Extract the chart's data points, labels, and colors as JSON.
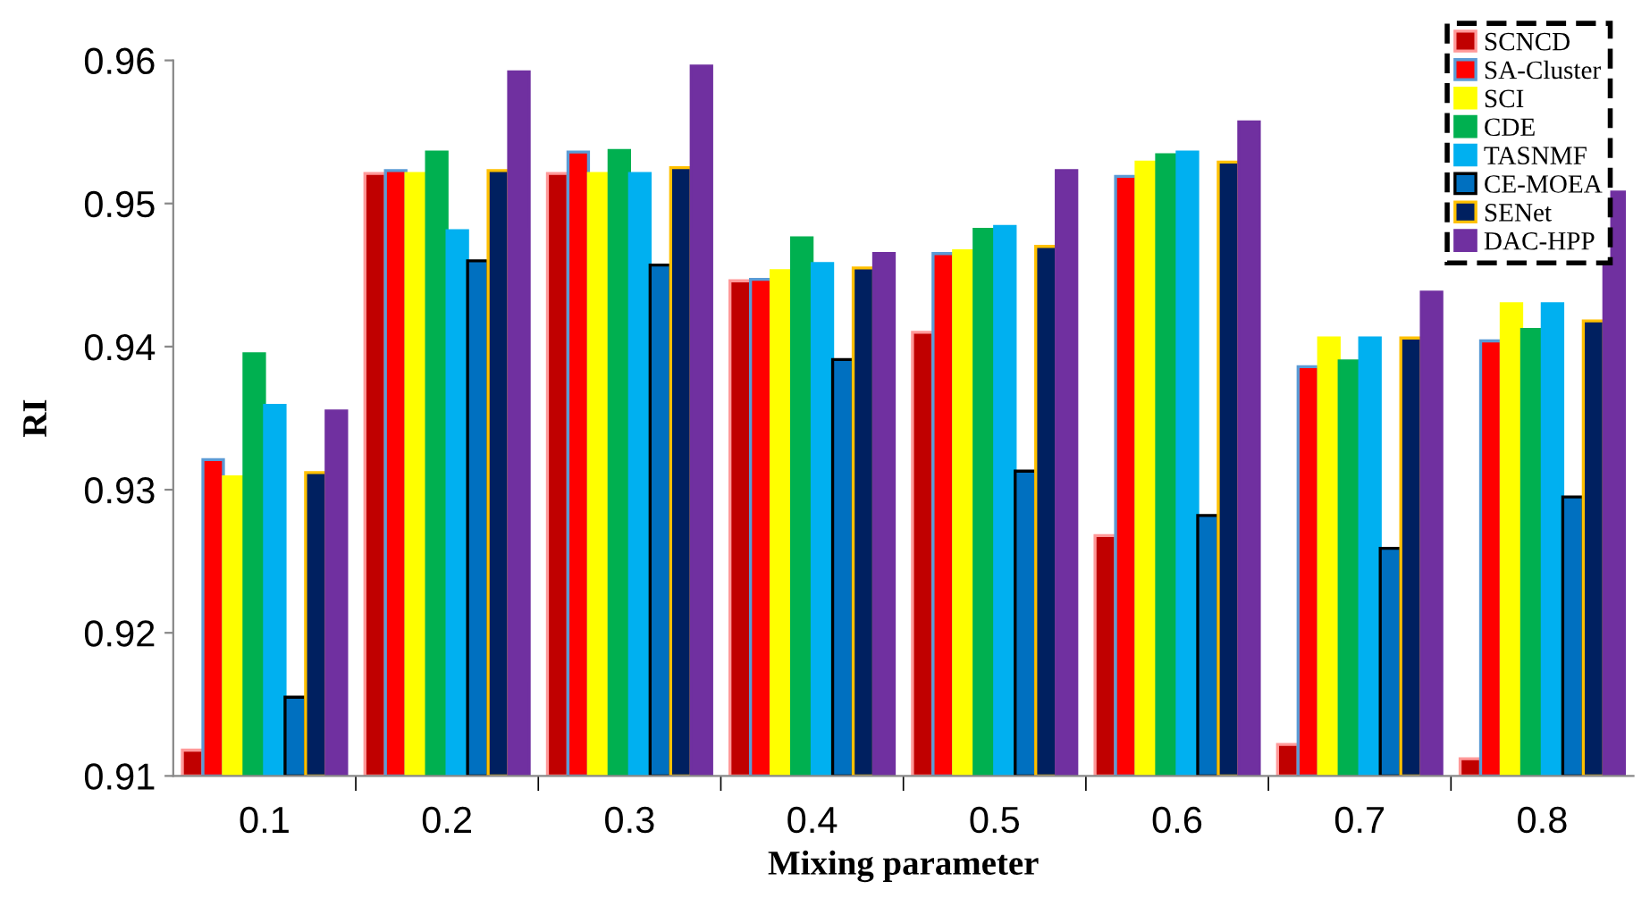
{
  "chart_data": {
    "type": "bar",
    "xlabel": "Mixing parameter",
    "ylabel": "RI",
    "categories": [
      "0.1",
      "0.2",
      "0.3",
      "0.4",
      "0.5",
      "0.6",
      "0.7",
      "0.8"
    ],
    "series": [
      {
        "name": "SCNCD",
        "color": "#c00000",
        "values": [
          0.9118,
          0.9521,
          0.9521,
          0.9446,
          0.941,
          0.9268,
          0.9122,
          0.9112
        ]
      },
      {
        "name": "SA-Cluster",
        "color": "#ff0000",
        "values": [
          0.9321,
          0.9523,
          0.9536,
          0.9447,
          0.9465,
          0.9519,
          0.9386,
          0.9404
        ]
      },
      {
        "name": "SCI",
        "color": "#ffff00",
        "values": [
          0.9309,
          0.9521,
          0.9521,
          0.9453,
          0.9467,
          0.9529,
          0.9406,
          0.943
        ]
      },
      {
        "name": "CDE",
        "color": "#00b050",
        "values": [
          0.9395,
          0.9536,
          0.9537,
          0.9476,
          0.9482,
          0.9534,
          0.939,
          0.9412
        ]
      },
      {
        "name": "TASNMF",
        "color": "#00b0f0",
        "values": [
          0.9359,
          0.9481,
          0.9521,
          0.9458,
          0.9484,
          0.9536,
          0.9406,
          0.943
        ]
      },
      {
        "name": "CE-MOEA",
        "color": "#0070c0",
        "values": [
          0.9155,
          0.946,
          0.9457,
          0.9391,
          0.9313,
          0.9282,
          0.9259,
          0.9295
        ]
      },
      {
        "name": "SENet",
        "color": "#002060",
        "values": [
          0.9312,
          0.9523,
          0.9525,
          0.9455,
          0.947,
          0.9529,
          0.9406,
          0.9418
        ]
      },
      {
        "name": "DAC-HPP",
        "color": "#7030a0",
        "values": [
          0.9355,
          0.9592,
          0.9596,
          0.9465,
          0.9523,
          0.9557,
          0.9438,
          0.9508
        ]
      }
    ],
    "ylim": [
      0.91,
      0.96
    ],
    "yticks": [
      {
        "value": 0.91,
        "label": "0.91"
      },
      {
        "value": 0.92,
        "label": "0.92"
      },
      {
        "value": 0.93,
        "label": "0.93"
      },
      {
        "value": 0.94,
        "label": "0.94"
      },
      {
        "value": 0.95,
        "label": "0.95"
      },
      {
        "value": 0.96,
        "label": "0.96"
      }
    ],
    "legend": "top right",
    "grid": false
  }
}
